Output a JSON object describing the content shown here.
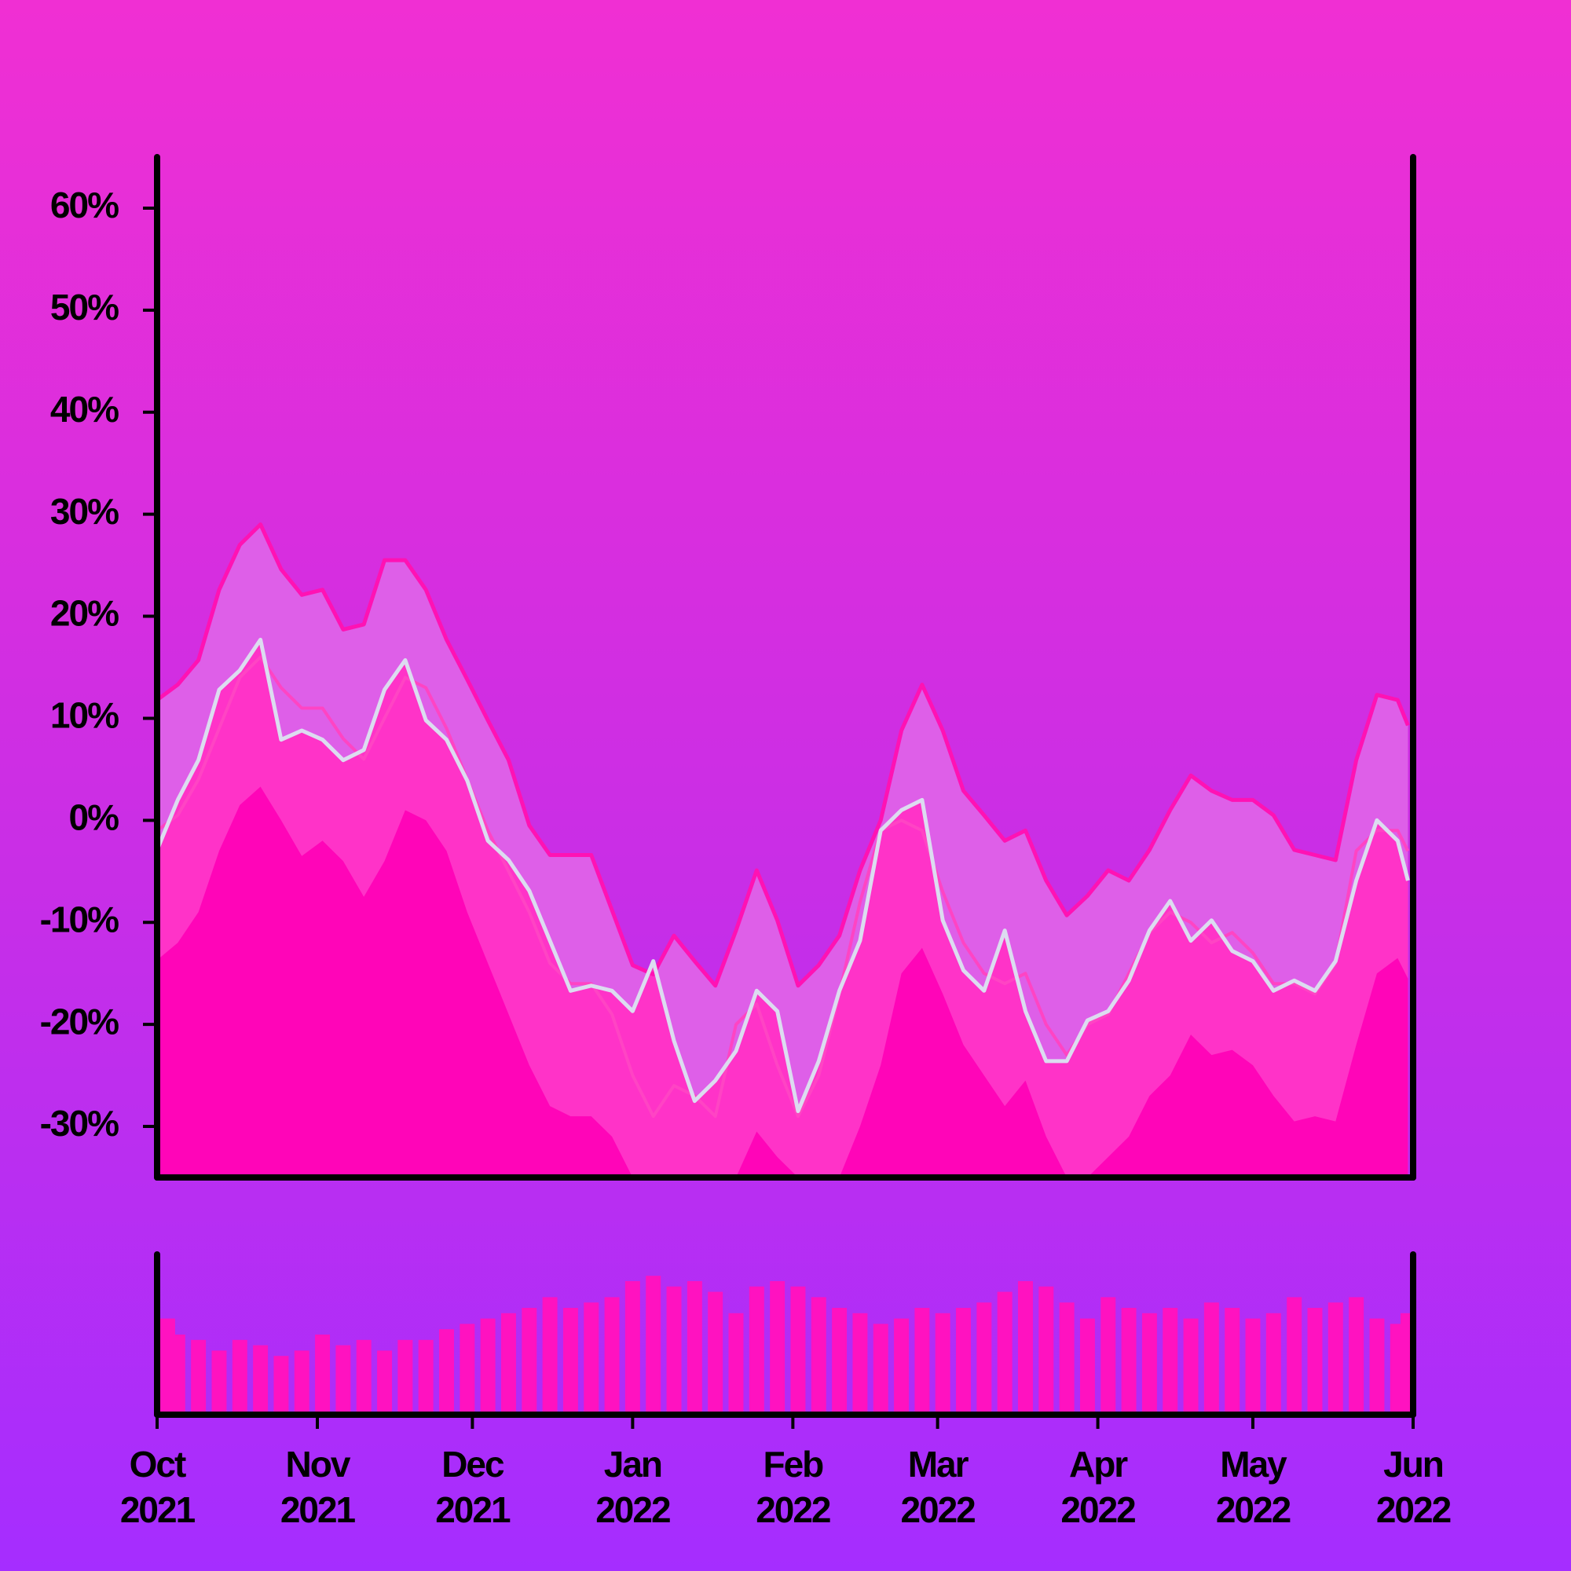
{
  "chart_data": [
    {
      "type": "line",
      "x": [
        0,
        4,
        8,
        12,
        16,
        20,
        24,
        28,
        32,
        36,
        40,
        44,
        48,
        52,
        56,
        60,
        64,
        68,
        72,
        76,
        80,
        84,
        88,
        92,
        96,
        100,
        104,
        108,
        112,
        116,
        120,
        124,
        128,
        132,
        136,
        140,
        144,
        148,
        152,
        156,
        160,
        164,
        168,
        172,
        176,
        180,
        184,
        188,
        192,
        196,
        200,
        204,
        208,
        212,
        216,
        220,
        224,
        228,
        232,
        236,
        240,
        242
      ],
      "xlim": [
        0,
        243
      ],
      "ylim": [
        -35,
        65
      ],
      "yticks": [
        {
          "value": -30,
          "label": "-30%"
        },
        {
          "value": -20,
          "label": "-20%"
        },
        {
          "value": -10,
          "label": "-10%"
        },
        {
          "value": 0,
          "label": "0%"
        },
        {
          "value": 10,
          "label": "10%"
        },
        {
          "value": 20,
          "label": "20%"
        },
        {
          "value": 30,
          "label": "30%"
        },
        {
          "value": 40,
          "label": "40%"
        },
        {
          "value": 50,
          "label": "50%"
        },
        {
          "value": 60,
          "label": "60%"
        }
      ],
      "series": [
        {
          "color": "#ff12b4",
          "fill": "#de5fe8",
          "values": [
            11.8,
            13.3,
            15.7,
            22.6,
            27.0,
            29.0,
            24.6,
            22.1,
            22.6,
            18.7,
            19.2,
            25.5,
            25.5,
            22.6,
            17.7,
            13.8,
            9.8,
            5.9,
            -0.5,
            -3.4,
            -3.4,
            -3.4,
            -8.8,
            -14.2,
            -15.1,
            -11.3,
            -13.8,
            -16.2,
            -10.8,
            -4.9,
            -9.8,
            -16.2,
            -14.2,
            -11.3,
            -4.9,
            0.0,
            8.8,
            13.3,
            8.8,
            2.9,
            0.5,
            -2.0,
            -1.0,
            -5.9,
            -9.3,
            -7.4,
            -4.9,
            -5.9,
            -2.9,
            1.0,
            4.4,
            2.9,
            2.0,
            2.0,
            0.5,
            -2.9,
            -3.4,
            -3.9,
            5.9,
            12.3,
            11.8,
            9.3
          ]
        },
        {
          "color": "#dcdcf0",
          "fill": "#ff33c8",
          "values": [
            -2.9,
            2.0,
            5.9,
            12.8,
            14.7,
            17.7,
            7.9,
            8.8,
            7.9,
            5.9,
            6.9,
            12.8,
            15.7,
            9.8,
            7.9,
            3.9,
            -2.0,
            -3.9,
            -6.9,
            -11.8,
            -16.7,
            -16.2,
            -16.7,
            -18.7,
            -13.8,
            -21.6,
            -27.5,
            -25.5,
            -22.6,
            -16.7,
            -18.7,
            -28.5,
            -23.6,
            -16.7,
            -11.8,
            -1.0,
            1.0,
            2.0,
            -9.8,
            -14.7,
            -16.7,
            -10.8,
            -18.7,
            -23.6,
            -23.6,
            -19.6,
            -18.7,
            -15.7,
            -10.8,
            -7.9,
            -11.8,
            -9.8,
            -12.8,
            -13.8,
            -16.7,
            -15.7,
            -16.7,
            -13.8,
            -5.9,
            0.0,
            -2.0,
            -5.9
          ]
        },
        {
          "color": "#ff44c4",
          "values": [
            -1,
            0.5,
            4,
            9,
            14,
            16,
            13,
            11,
            11,
            8,
            6,
            10,
            14,
            13,
            9,
            4,
            -1,
            -5,
            -9,
            -14,
            -16,
            -16,
            -19,
            -25,
            -29,
            -26,
            -27,
            -29,
            -20,
            -18,
            -24,
            -29,
            -25,
            -17,
            -8,
            -1,
            0,
            -1,
            -7,
            -12,
            -15,
            -16,
            -15,
            -20,
            -23,
            -20,
            -19,
            -15,
            -11,
            -9,
            -10,
            -12,
            -11,
            -13,
            -16,
            -16,
            -17,
            -14,
            -3,
            -1,
            -1,
            -3
          ]
        },
        {
          "fill": "#ff05b8",
          "values": [
            -13.7,
            -12,
            -9,
            -3,
            1.5,
            3.3,
            0,
            -3.5,
            -2,
            -4,
            -7.5,
            -4,
            1,
            0,
            -3,
            -9,
            -14,
            -19,
            -24,
            -28,
            -29,
            -29,
            -31,
            -35,
            -35,
            -35,
            -35,
            -35,
            -35,
            -30.5,
            -33,
            -35,
            -35,
            -35,
            -30,
            -24,
            -15,
            -12.5,
            -17,
            -22,
            -25,
            -28,
            -25.5,
            -31,
            -35,
            -35,
            -33,
            -31,
            -27,
            -25,
            -21,
            -23,
            -22.5,
            -24,
            -27,
            -29.5,
            -29,
            -29.5,
            -22,
            -15,
            -13.5,
            -15.5
          ]
        }
      ]
    },
    {
      "type": "bar",
      "color": "#ff12c0",
      "values": [
        90,
        75,
        70,
        60,
        70,
        65,
        55,
        60,
        75,
        65,
        70,
        60,
        70,
        70,
        80,
        85,
        90,
        95,
        100,
        110,
        100,
        105,
        110,
        125,
        130,
        120,
        125,
        115,
        95,
        120,
        125,
        120,
        110,
        100,
        95,
        85,
        90,
        100,
        95,
        100,
        105,
        115,
        125,
        120,
        105,
        90,
        110,
        100,
        95,
        100,
        90,
        105,
        100,
        90,
        95,
        110,
        100,
        105,
        110,
        90,
        85,
        95
      ],
      "ylim": [
        0,
        150
      ],
      "xticks": [
        {
          "value": 0,
          "label": "Oct 2021"
        },
        {
          "value": 31,
          "label": "Nov 2021"
        },
        {
          "value": 61,
          "label": "Dec 2021"
        },
        {
          "value": 92,
          "label": "Jan 2022"
        },
        {
          "value": 123,
          "label": "Feb 2022"
        },
        {
          "value": 151,
          "label": "Mar 2022"
        },
        {
          "value": 182,
          "label": "Apr 2022"
        },
        {
          "value": 212,
          "label": "May 2022"
        },
        {
          "value": 243,
          "label": "Jun 2022"
        }
      ]
    }
  ]
}
